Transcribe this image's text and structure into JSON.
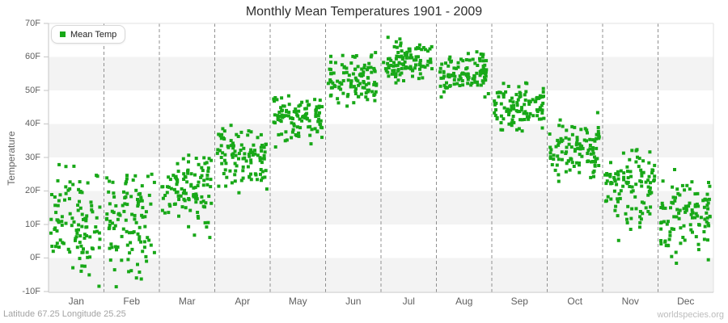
{
  "title": {
    "text": "Monthly Mean Temperatures 1901 - 2009"
  },
  "legend": {
    "label": "Mean Temp"
  },
  "y_axis": {
    "title": "Temperature",
    "tick_labels": [
      "70F",
      "60F",
      "50F",
      "40F",
      "30F",
      "20F",
      "10F",
      "0F",
      "-10F"
    ]
  },
  "x_axis": {
    "tick_labels": [
      "Jan",
      "Feb",
      "Mar",
      "Apr",
      "May",
      "Jun",
      "Jul",
      "Aug",
      "Sep",
      "Oct",
      "Nov",
      "Dec"
    ]
  },
  "footer": {
    "left": "Latitude 67.25 Longitude 25.25",
    "right": "worldspecies.org"
  },
  "colors": {
    "point": "#18a818",
    "band": "#ffffff",
    "band_alt": "#f3f3f3",
    "grid_dash": "#909090",
    "axis": "#c6c6c6",
    "border": "#e2e2e2",
    "label": "#606060",
    "title": "#2d2d2d",
    "footer_left": "#a3a3a3",
    "footer_right": "#bcbcbc"
  },
  "chart_data": {
    "type": "scatter",
    "title": "Monthly Mean Temperatures 1901 - 2009",
    "series": [
      {
        "name": "Mean Temp",
        "marker": "square",
        "color": "#18a818"
      }
    ],
    "x_categories": [
      "Jan",
      "Feb",
      "Mar",
      "Apr",
      "May",
      "Jun",
      "Jul",
      "Aug",
      "Sep",
      "Oct",
      "Nov",
      "Dec"
    ],
    "ylabel": "Temperature",
    "yunit": "F",
    "ylim": [
      -10,
      70
    ],
    "ytick_step": 10,
    "year_range": "1901 - 2009",
    "points_per_month": 109,
    "legend_position": "top-left",
    "background_bands": "alternating horizontal 10F bands",
    "month_dividers": "dashed vertical lines",
    "monthly_stats_F": [
      {
        "month": "Jan",
        "mean": 11.5,
        "std": 7.0,
        "min": -8.5,
        "max": 28.0
      },
      {
        "month": "Feb",
        "mean": 10.5,
        "std": 7.5,
        "min": -9.5,
        "max": 27.0
      },
      {
        "month": "Mar",
        "mean": 20.5,
        "std": 5.5,
        "min": 4.0,
        "max": 32.0
      },
      {
        "month": "Apr",
        "mean": 29.5,
        "std": 4.5,
        "min": 19.0,
        "max": 40.5
      },
      {
        "month": "May",
        "mean": 42.0,
        "std": 3.5,
        "min": 33.0,
        "max": 50.0
      },
      {
        "month": "Jun",
        "mean": 53.5,
        "std": 3.5,
        "min": 43.0,
        "max": 63.0
      },
      {
        "month": "Jul",
        "mean": 58.5,
        "std": 3.2,
        "min": 50.0,
        "max": 67.0
      },
      {
        "month": "Aug",
        "mean": 55.0,
        "std": 3.0,
        "min": 47.5,
        "max": 62.5
      },
      {
        "month": "Sep",
        "mean": 45.5,
        "std": 3.0,
        "min": 37.5,
        "max": 52.5
      },
      {
        "month": "Oct",
        "mean": 32.5,
        "std": 4.5,
        "min": 20.5,
        "max": 43.5
      },
      {
        "month": "Nov",
        "mean": 21.5,
        "std": 5.5,
        "min": -1.0,
        "max": 33.5
      },
      {
        "month": "Dec",
        "mean": 13.5,
        "std": 7.0,
        "min": -7.5,
        "max": 29.5
      }
    ],
    "seed": 11
  }
}
